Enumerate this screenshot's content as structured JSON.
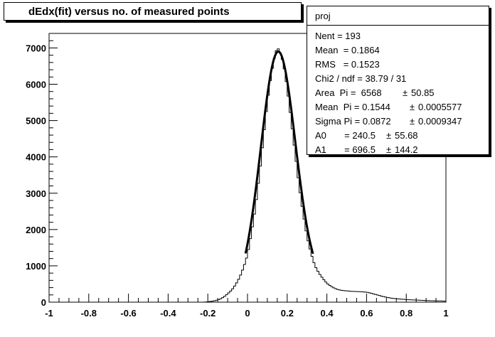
{
  "title": "dEdx(fit) versus no. of measured points",
  "stats": {
    "name": "proj",
    "rows": [
      {
        "label": "Nent = 193",
        "err": ""
      },
      {
        "label": "Mean  = 0.1864",
        "err": ""
      },
      {
        "label": "RMS   = 0.1523",
        "err": ""
      },
      {
        "label": "Chi2 / ndf = 38.79 / 31",
        "err": ""
      },
      {
        "label": "Area  Pi =  6568",
        "err": "50.85"
      },
      {
        "label": "Mean  Pi = 0.1544",
        "err": "0.0005577"
      },
      {
        "label": "Sigma Pi = 0.0872",
        "err": "0.0009347"
      },
      {
        "label": "A0       = 240.5",
        "err": "55.68"
      },
      {
        "label": "A1       = 696.5",
        "err": "144.2"
      }
    ],
    "pm_symbol": "±"
  },
  "chart_data": {
    "type": "histogram",
    "xlim": [
      -1,
      1
    ],
    "ylim": [
      0,
      7400
    ],
    "x_ticks": [
      "-1",
      "-0.8",
      "-0.6",
      "-0.4",
      "-0.2",
      "0",
      "0.2",
      "0.4",
      "0.6",
      "0.8",
      "1"
    ],
    "y_ticks": [
      "0",
      "1000",
      "2000",
      "3000",
      "4000",
      "5000",
      "6000",
      "7000"
    ],
    "bin_width": 0.01,
    "histogram": [
      [
        -0.22,
        0
      ],
      [
        -0.2,
        10
      ],
      [
        -0.18,
        25
      ],
      [
        -0.16,
        45
      ],
      [
        -0.14,
        80
      ],
      [
        -0.12,
        140
      ],
      [
        -0.1,
        230
      ],
      [
        -0.08,
        330
      ],
      [
        -0.06,
        480
      ],
      [
        -0.04,
        680
      ],
      [
        -0.02,
        950
      ],
      [
        0.0,
        1300
      ],
      [
        0.02,
        1900
      ],
      [
        0.04,
        2600
      ],
      [
        0.06,
        3500
      ],
      [
        0.08,
        4500
      ],
      [
        0.1,
        5500
      ],
      [
        0.12,
        6300
      ],
      [
        0.14,
        6850
      ],
      [
        0.15,
        7000
      ],
      [
        0.16,
        6950
      ],
      [
        0.18,
        6600
      ],
      [
        0.2,
        5900
      ],
      [
        0.22,
        5000
      ],
      [
        0.24,
        4100
      ],
      [
        0.26,
        3200
      ],
      [
        0.28,
        2450
      ],
      [
        0.3,
        1800
      ],
      [
        0.32,
        1350
      ],
      [
        0.34,
        1000
      ],
      [
        0.36,
        800
      ],
      [
        0.38,
        650
      ],
      [
        0.4,
        520
      ],
      [
        0.42,
        440
      ],
      [
        0.44,
        380
      ],
      [
        0.46,
        340
      ],
      [
        0.48,
        320
      ],
      [
        0.5,
        310
      ],
      [
        0.52,
        300
      ],
      [
        0.54,
        295
      ],
      [
        0.56,
        290
      ],
      [
        0.58,
        285
      ],
      [
        0.6,
        275
      ],
      [
        0.62,
        250
      ],
      [
        0.64,
        220
      ],
      [
        0.66,
        190
      ],
      [
        0.68,
        160
      ],
      [
        0.7,
        135
      ],
      [
        0.72,
        115
      ],
      [
        0.74,
        100
      ],
      [
        0.76,
        90
      ],
      [
        0.78,
        80
      ],
      [
        0.8,
        70
      ],
      [
        0.84,
        60
      ],
      [
        0.88,
        50
      ],
      [
        0.92,
        40
      ],
      [
        0.96,
        35
      ],
      [
        1.0,
        30
      ]
    ],
    "fit": {
      "type": "gaussian + linear",
      "range": [
        -0.01,
        0.33
      ],
      "area": 6568,
      "mean": 0.1544,
      "sigma": 0.0872,
      "a0": 240.5,
      "a1": 696.5
    }
  }
}
